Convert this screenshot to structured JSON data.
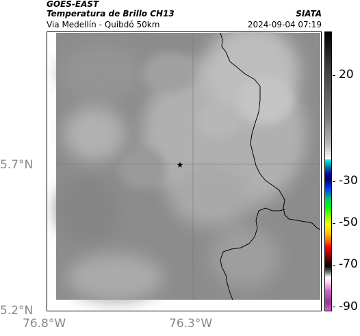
{
  "header": {
    "agency": "GOES-EAST",
    "product": "Temperatura de Brillo CH13",
    "region": "Via Medellín - Quibdó 50km",
    "organization": "SIATA",
    "timestamp": "2024-09-04 07:19"
  },
  "axes": {
    "lat_labels": [
      "5.7°N",
      "5.2°N"
    ],
    "lon_labels": [
      "76.8°W",
      "76.3°W"
    ],
    "gridlines": true
  },
  "colorbar": {
    "labels": [
      "20",
      "-30",
      "-50",
      "-70",
      "-90"
    ]
  },
  "map": {
    "marker_icon": "star-icon",
    "background_color": "#8f8f8f",
    "border_color": "#000000"
  }
}
